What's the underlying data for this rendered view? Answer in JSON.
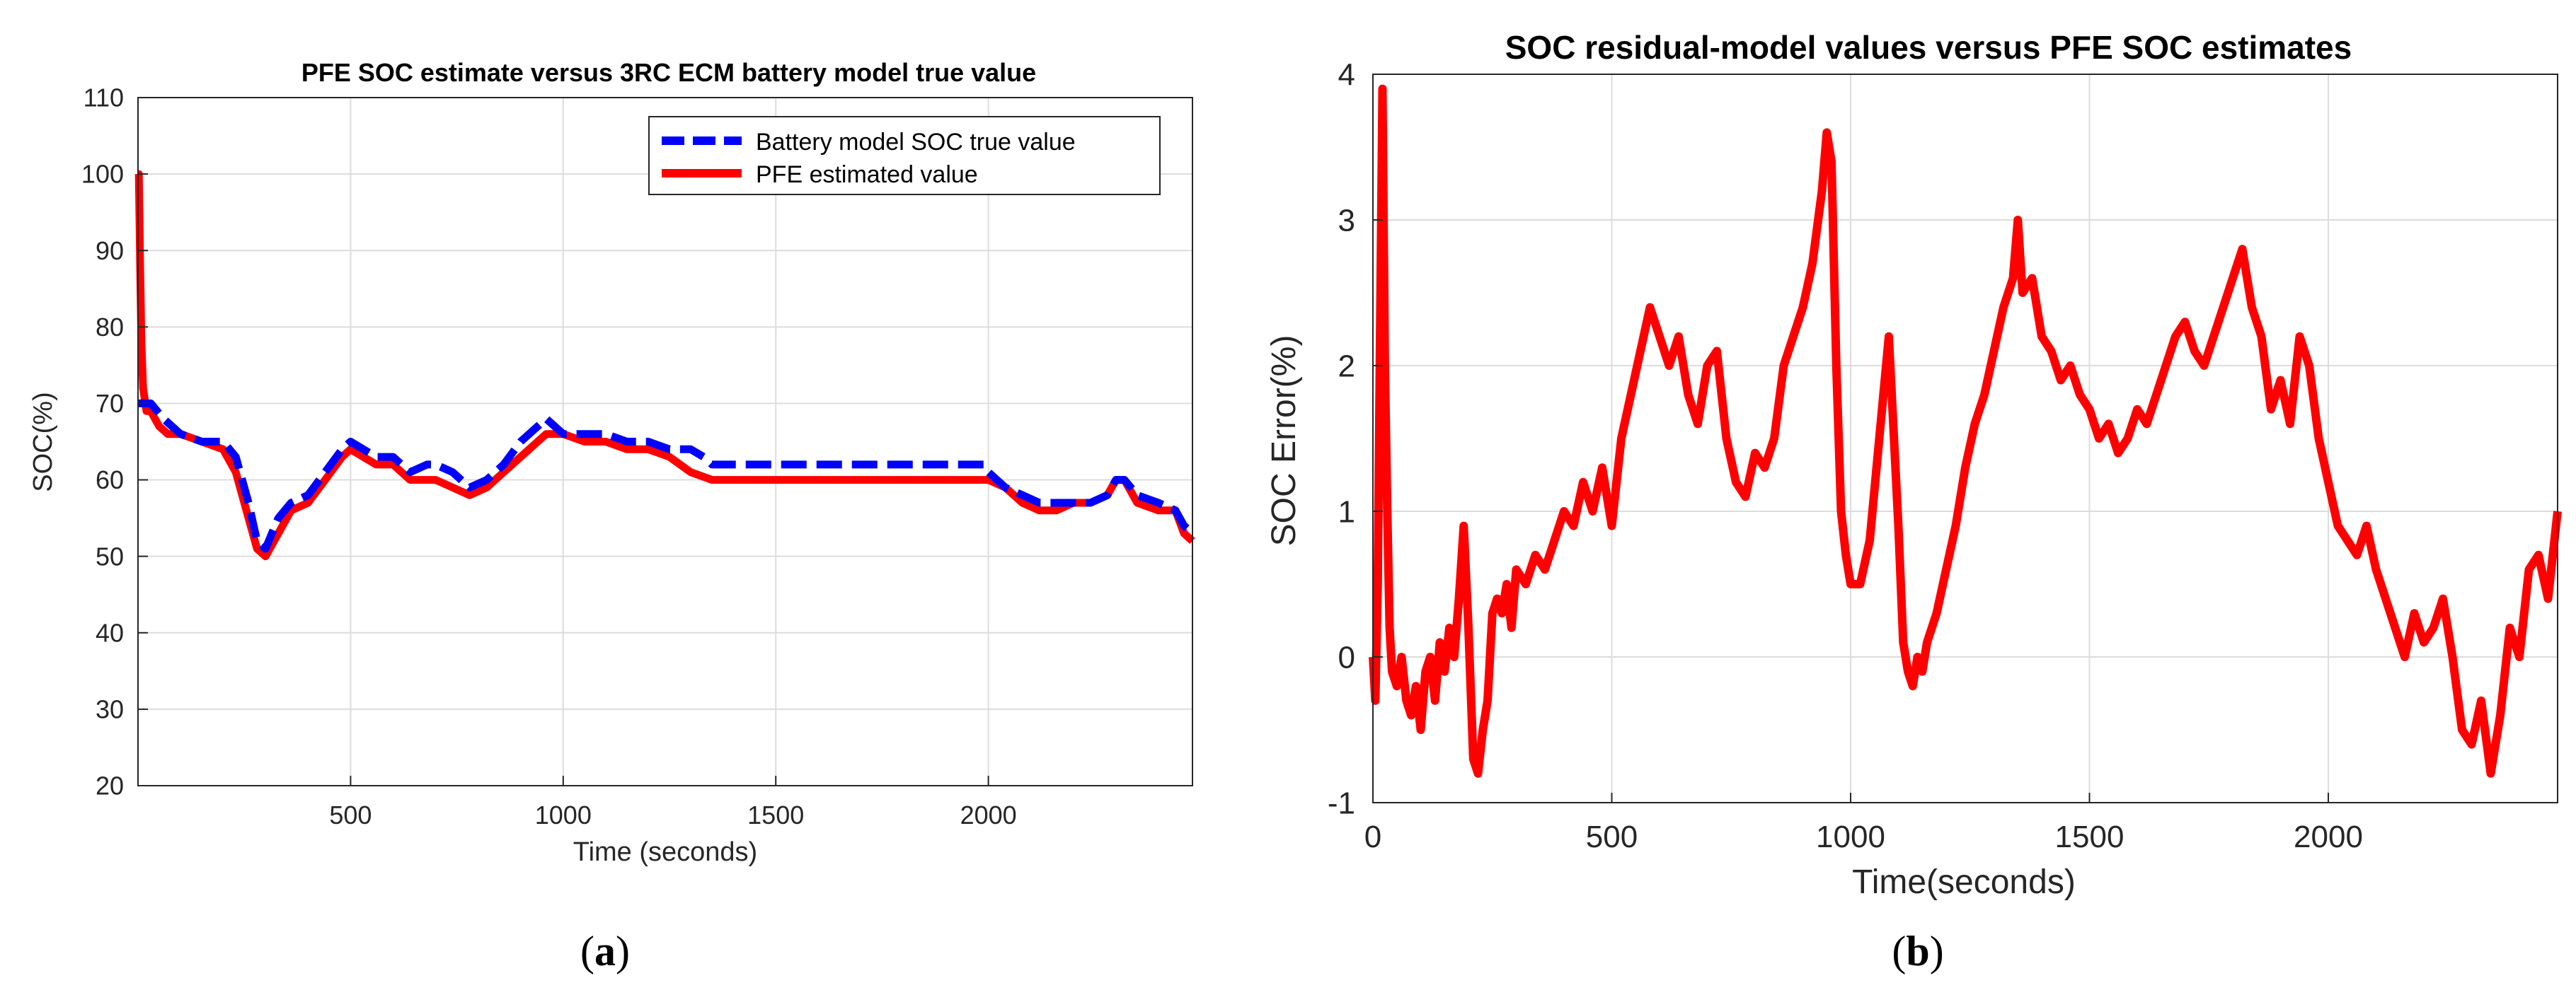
{
  "chart_data": [
    {
      "type": "line",
      "title": "PFE SOC estimate versus 3RC ECM battery model true value",
      "xlabel": "Time (seconds)",
      "ylabel": "SOC(%)",
      "xlim": [
        0,
        2480
      ],
      "ylim": [
        20,
        110
      ],
      "xticks": [
        500,
        1000,
        1500,
        2000
      ],
      "yticks": [
        20,
        30,
        40,
        50,
        60,
        70,
        80,
        90,
        100,
        110
      ],
      "grid": true,
      "legend_position": "top-right",
      "caption_letter": "a",
      "series": [
        {
          "name": "Battery model SOC true value",
          "color": "#0000ff",
          "style": "dashed",
          "x": [
            0,
            30,
            60,
            100,
            150,
            200,
            230,
            260,
            280,
            300,
            330,
            360,
            400,
            440,
            480,
            500,
            530,
            560,
            600,
            640,
            680,
            700,
            740,
            780,
            820,
            860,
            900,
            940,
            960,
            980,
            1000,
            1050,
            1100,
            1150,
            1200,
            1250,
            1300,
            1330,
            1350,
            1400,
            1500,
            1600,
            1700,
            1800,
            1900,
            1950,
            1990,
            2000,
            2040,
            2080,
            2120,
            2160,
            2200,
            2240,
            2280,
            2300,
            2320,
            2350,
            2400,
            2440,
            2460,
            2480
          ],
          "y": [
            70,
            70,
            68,
            66,
            65,
            65,
            63,
            57,
            52,
            51,
            55,
            57,
            58,
            61,
            64,
            65,
            64,
            63,
            63,
            61,
            62,
            62,
            61,
            59,
            60,
            62,
            65,
            67,
            68,
            67,
            66,
            66,
            66,
            65,
            65,
            64,
            64,
            63,
            62,
            62,
            62,
            62,
            62,
            62,
            62,
            62,
            62,
            61,
            59,
            58,
            57,
            57,
            57,
            57,
            58,
            60,
            60,
            58,
            57,
            56,
            54,
            53
          ]
        },
        {
          "name": "PFE estimated value",
          "color": "#ff0000",
          "style": "solid",
          "x": [
            0,
            2,
            5,
            8,
            12,
            20,
            30,
            50,
            70,
            100,
            150,
            200,
            230,
            260,
            280,
            300,
            330,
            360,
            400,
            440,
            480,
            500,
            530,
            560,
            600,
            640,
            680,
            700,
            740,
            780,
            820,
            860,
            900,
            940,
            960,
            980,
            1000,
            1050,
            1100,
            1150,
            1200,
            1250,
            1300,
            1350,
            1400,
            1500,
            1600,
            1700,
            1800,
            1900,
            1950,
            2000,
            2040,
            2080,
            2120,
            2160,
            2200,
            2240,
            2280,
            2300,
            2320,
            2350,
            2400,
            2440,
            2460,
            2480
          ],
          "y": [
            100,
            100,
            88,
            78,
            72,
            69,
            69,
            67,
            66,
            66,
            65,
            64,
            61,
            55,
            51,
            50,
            53,
            56,
            57,
            60,
            63,
            64,
            63,
            62,
            62,
            60,
            60,
            60,
            59,
            58,
            59,
            61,
            63,
            65,
            66,
            66,
            66,
            65,
            65,
            64,
            64,
            63,
            61,
            60,
            60,
            60,
            60,
            60,
            60,
            60,
            60,
            60,
            59,
            57,
            56,
            56,
            57,
            57,
            58,
            60,
            60,
            57,
            56,
            56,
            53,
            52
          ]
        }
      ]
    },
    {
      "type": "line",
      "title": "SOC residual-model values versus PFE SOC estimates",
      "xlabel": "Time(seconds)",
      "ylabel": "SOC Error(%)",
      "xlim": [
        0,
        2480
      ],
      "ylim": [
        -1,
        4
      ],
      "xticks": [
        0,
        500,
        1000,
        1500,
        2000
      ],
      "yticks": [
        -1,
        0,
        1,
        2,
        3,
        4
      ],
      "grid": true,
      "caption_letter": "b",
      "series": [
        {
          "name": "SOC error",
          "color": "#ff0000",
          "style": "solid",
          "x": [
            0,
            5,
            10,
            15,
            20,
            25,
            30,
            35,
            40,
            50,
            60,
            70,
            80,
            90,
            100,
            110,
            120,
            130,
            140,
            150,
            160,
            170,
            180,
            190,
            200,
            210,
            220,
            230,
            240,
            250,
            260,
            270,
            280,
            290,
            300,
            320,
            340,
            360,
            380,
            400,
            420,
            440,
            460,
            480,
            500,
            520,
            540,
            560,
            580,
            600,
            620,
            640,
            660,
            680,
            700,
            720,
            740,
            760,
            780,
            800,
            820,
            840,
            860,
            880,
            900,
            920,
            940,
            950,
            960,
            970,
            980,
            990,
            1000,
            1020,
            1040,
            1060,
            1080,
            1100,
            1110,
            1120,
            1130,
            1140,
            1150,
            1160,
            1180,
            1200,
            1220,
            1240,
            1260,
            1280,
            1300,
            1320,
            1340,
            1350,
            1360,
            1380,
            1400,
            1420,
            1440,
            1460,
            1480,
            1500,
            1520,
            1540,
            1560,
            1580,
            1600,
            1620,
            1640,
            1660,
            1680,
            1700,
            1720,
            1740,
            1760,
            1780,
            1800,
            1820,
            1840,
            1860,
            1880,
            1900,
            1920,
            1940,
            1960,
            1980,
            2000,
            2020,
            2040,
            2060,
            2080,
            2100,
            2120,
            2140,
            2160,
            2180,
            2200,
            2220,
            2240,
            2260,
            2280,
            2300,
            2320,
            2340,
            2360,
            2380,
            2400,
            2420,
            2440,
            2460,
            2480
          ],
          "y": [
            0.0,
            -0.3,
            0.5,
            2.2,
            3.9,
            2.0,
            1.0,
            0.2,
            -0.1,
            -0.2,
            0.0,
            -0.3,
            -0.4,
            -0.2,
            -0.5,
            -0.1,
            0.0,
            -0.3,
            0.1,
            -0.1,
            0.2,
            0.0,
            0.4,
            0.9,
            0.2,
            -0.7,
            -0.8,
            -0.5,
            -0.3,
            0.3,
            0.4,
            0.3,
            0.5,
            0.2,
            0.6,
            0.5,
            0.7,
            0.6,
            0.8,
            1.0,
            0.9,
            1.2,
            1.0,
            1.3,
            0.9,
            1.5,
            1.8,
            2.1,
            2.4,
            2.2,
            2.0,
            2.2,
            1.8,
            1.6,
            2.0,
            2.1,
            1.5,
            1.2,
            1.1,
            1.4,
            1.3,
            1.5,
            2.0,
            2.2,
            2.4,
            2.7,
            3.2,
            3.6,
            3.4,
            2.0,
            1.0,
            0.7,
            0.5,
            0.5,
            0.8,
            1.5,
            2.2,
            0.9,
            0.1,
            -0.1,
            -0.2,
            0.0,
            -0.1,
            0.1,
            0.3,
            0.6,
            0.9,
            1.3,
            1.6,
            1.8,
            2.1,
            2.4,
            2.6,
            3.0,
            2.5,
            2.6,
            2.2,
            2.1,
            1.9,
            2.0,
            1.8,
            1.7,
            1.5,
            1.6,
            1.4,
            1.5,
            1.7,
            1.6,
            1.8,
            2.0,
            2.2,
            2.3,
            2.1,
            2.0,
            2.2,
            2.4,
            2.6,
            2.8,
            2.4,
            2.2,
            1.7,
            1.9,
            1.6,
            2.2,
            2.0,
            1.5,
            1.2,
            0.9,
            0.8,
            0.7,
            0.9,
            0.6,
            0.4,
            0.2,
            0.0,
            0.3,
            0.1,
            0.2,
            0.4,
            0.0,
            -0.5,
            -0.6,
            -0.3,
            -0.8,
            -0.4,
            0.2,
            0.0,
            0.6,
            0.7,
            0.4,
            1.0
          ]
        }
      ]
    }
  ]
}
